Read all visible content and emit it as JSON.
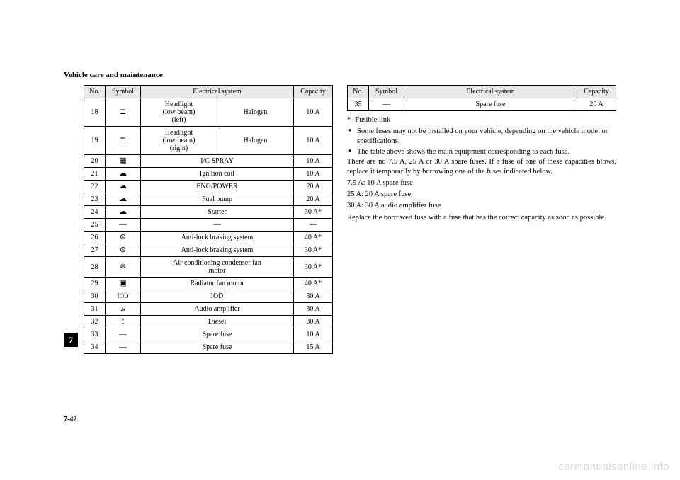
{
  "section_title": "Vehicle care and maintenance",
  "page_number": "7-42",
  "chapter": "7",
  "watermark": "carmanualsonline.info",
  "headers": {
    "no": "No.",
    "symbol": "Symbol",
    "system": "Electrical system",
    "capacity": "Capacity"
  },
  "left_rows": [
    {
      "no": "18",
      "sym": "headlight",
      "sys_split": {
        "left": "Headlight\n(low beam)\n(left)",
        "right": "Halogen"
      },
      "cap": "10 A"
    },
    {
      "no": "19",
      "sym": "headlight",
      "sys_split": {
        "left": "Headlight\n(low beam)\n(right)",
        "right": "Halogen"
      },
      "cap": "10 A"
    },
    {
      "no": "20",
      "sym": "spray",
      "sys": "I/C SPRAY",
      "cap": "10 A"
    },
    {
      "no": "21",
      "sym": "engine",
      "sys": "Ignition coil",
      "cap": "10 A"
    },
    {
      "no": "22",
      "sym": "engine",
      "sys": "ENG/POWER",
      "cap": "20 A"
    },
    {
      "no": "23",
      "sym": "engine",
      "sys": "Fuel pump",
      "cap": "20 A"
    },
    {
      "no": "24",
      "sym": "engine",
      "sys": "Starter",
      "cap": "30 A*"
    },
    {
      "no": "25",
      "sym": "dash",
      "sys": "—",
      "cap": "—"
    },
    {
      "no": "26",
      "sym": "abs",
      "sys": "Anti-lock braking system",
      "cap": "40 A*"
    },
    {
      "no": "27",
      "sym": "abs",
      "sys": "Anti-lock braking system",
      "cap": "30 A*"
    },
    {
      "no": "28",
      "sym": "snow",
      "sys": "Air conditioning condenser fan\nmotor",
      "cap": "30 A*"
    },
    {
      "no": "29",
      "sym": "fan",
      "sys": "Radiator fan motor",
      "cap": "40 A*"
    },
    {
      "no": "30",
      "sym": "IOD",
      "sys": "IOD",
      "cap": "30 A"
    },
    {
      "no": "31",
      "sym": "music",
      "sys": "Audio amplifier",
      "cap": "30 A"
    },
    {
      "no": "32",
      "sym": "diesel",
      "sys": "Diesel",
      "cap": "30 A"
    },
    {
      "no": "33",
      "sym": "dash",
      "sys": "Spare fuse",
      "cap": "10 A"
    },
    {
      "no": "34",
      "sym": "dash",
      "sys": "Spare fuse",
      "cap": "15 A"
    }
  ],
  "right_rows": [
    {
      "no": "35",
      "sym": "dash",
      "sys": "Spare fuse",
      "cap": "20 A"
    }
  ],
  "notes": {
    "fusible": "*- Fusible link",
    "bullets": [
      "Some fuses may not be installed on your vehicle, depending on the vehicle model or specifications.",
      "The table above shows the main equipment corresponding to each fuse."
    ],
    "para1": "There are no 7.5 A, 25 A or 30 A spare fuses. If a fuse of one of these capacities blows, replace it temporarily by borrowing one of the fuses indicated below.",
    "line1": "7.5 A: 10 A spare fuse",
    "line2": "25 A: 20 A spare fuse",
    "line3": "30 A: 30 A audio amplifier fuse",
    "para2": "Replace the borrowed fuse with a fuse that has the correct capacity as soon as possible."
  },
  "symbols": {
    "headlight": "⊐",
    "spray": "▦",
    "engine": "☁",
    "dash": "—",
    "abs": "⊛",
    "snow": "❄",
    "fan": "▣",
    "IOD": "IOD",
    "music": "♫",
    "diesel": "⟟"
  }
}
